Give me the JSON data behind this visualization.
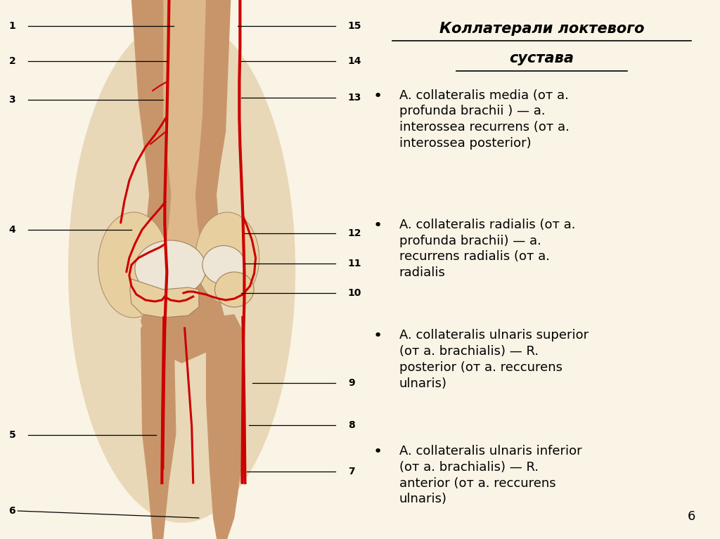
{
  "bg_color": "#FAF4E6",
  "title_line1": "Коллатерали локтевого",
  "title_line2": "сустава",
  "bullet_points": [
    "A. collateralis media (от а.\nprofunda brachii ) — а.\ninterossea recurrens (от а.\ninterossea posterior)",
    "A. collateralis radialis (от а.\nprofunda brachii) — а.\nrecurrens radialis (от а.\nradialis",
    "A. collateralis ulnaris superior\n(от а. brachialis) — R.\nposterior (от а. reccurens\nulnaris)",
    "A. collateralis ulnaris inferior\n(от а. brachialis) — R.\nanterior (от а. reccurens\nulnaris)"
  ],
  "page_number": "6",
  "vessel_color": "#CC0000",
  "bone_tan": "#C8956A",
  "bone_light": "#DDB88A",
  "bone_lighter": "#E8CFA0",
  "bone_white": "#EDE5D5",
  "outer_bg": "#F0E8D0",
  "skin_bg": "#E8D8B8"
}
